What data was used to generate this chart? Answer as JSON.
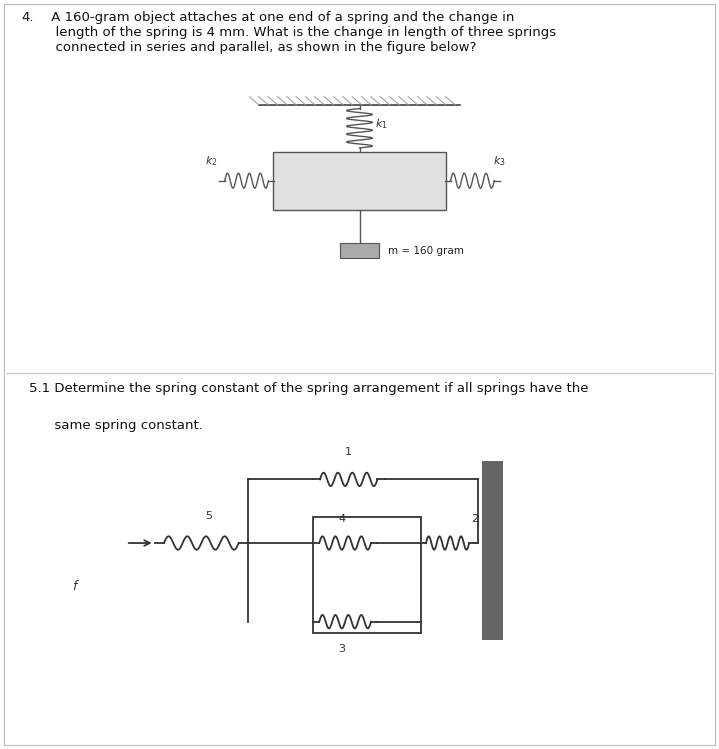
{
  "bg_color": "#ffffff",
  "top_text_num": "4.",
  "top_text_body": " A 160-gram object attaches at one end of a spring and the change in\n  length of the spring is 4 mm. What is the change in length of three springs\n  connected in series and parallel, as shown in the figure below?",
  "bottom_text_1": "5.1 Determine the spring constant of the spring arrangement if all springs have the",
  "bottom_text_2": "      same spring constant.",
  "mass_label": "m = 160 gram",
  "wall_color": "#666666",
  "line_color": "#333333",
  "box_fill": "#e0e0e0",
  "mass_fill": "#aaaaaa",
  "hatch_color": "#999999",
  "text_color": "#111111"
}
